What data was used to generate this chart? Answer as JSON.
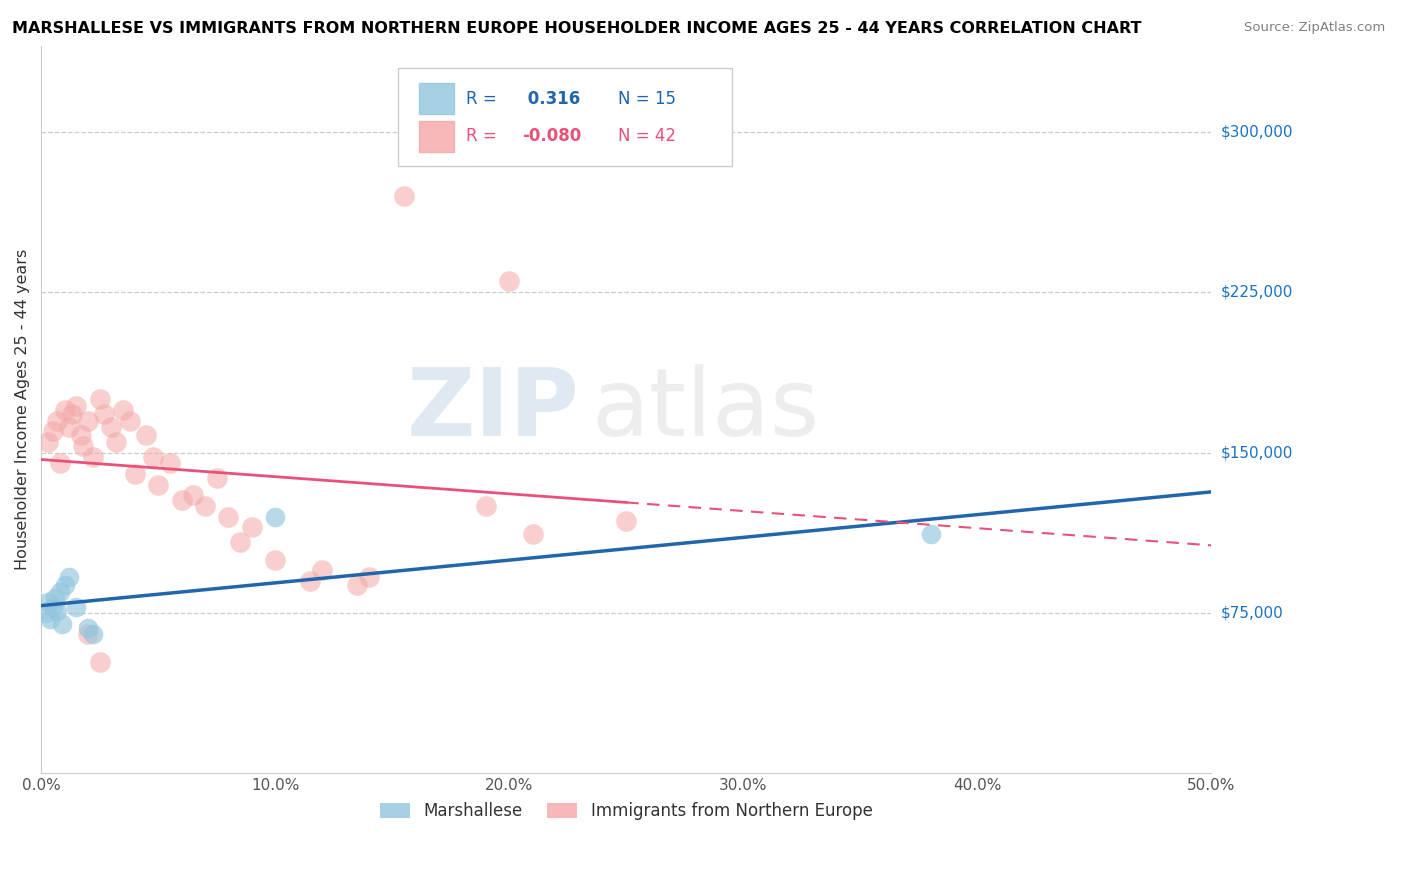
{
  "title": "MARSHALLESE VS IMMIGRANTS FROM NORTHERN EUROPE HOUSEHOLDER INCOME AGES 25 - 44 YEARS CORRELATION CHART",
  "source": "Source: ZipAtlas.com",
  "ylabel": "Householder Income Ages 25 - 44 years",
  "xlim": [
    0,
    0.5
  ],
  "ylim": [
    0,
    340000
  ],
  "xticks": [
    0.0,
    0.1,
    0.2,
    0.3,
    0.4,
    0.5
  ],
  "xticklabels": [
    "0.0%",
    "10.0%",
    "20.0%",
    "30.0%",
    "40.0%",
    "50.0%"
  ],
  "yticks_right": [
    75000,
    150000,
    225000,
    300000
  ],
  "ytick_labels_right": [
    "$75,000",
    "$150,000",
    "$225,000",
    "$300,000"
  ],
  "blue_R": 0.316,
  "blue_N": 15,
  "pink_R": -0.08,
  "pink_N": 42,
  "blue_color": "#92c5de",
  "pink_color": "#f4a6a6",
  "blue_line_color": "#2166ac",
  "pink_line_color": "#e8527a",
  "watermark_zip": "ZIP",
  "watermark_atlas": "atlas",
  "legend_label_blue": "Marshallese",
  "legend_label_pink": "Immigrants from Northern Europe",
  "blue_points_x": [
    0.002,
    0.003,
    0.004,
    0.005,
    0.006,
    0.007,
    0.008,
    0.009,
    0.01,
    0.012,
    0.015,
    0.02,
    0.022,
    0.1,
    0.38
  ],
  "blue_points_y": [
    75000,
    80000,
    72000,
    78000,
    82000,
    76000,
    85000,
    70000,
    88000,
    92000,
    78000,
    68000,
    65000,
    120000,
    112000
  ],
  "pink_points_x": [
    0.003,
    0.005,
    0.007,
    0.008,
    0.01,
    0.012,
    0.013,
    0.015,
    0.017,
    0.018,
    0.02,
    0.022,
    0.025,
    0.027,
    0.03,
    0.032,
    0.035,
    0.038,
    0.04,
    0.045,
    0.048,
    0.05,
    0.055,
    0.06,
    0.065,
    0.07,
    0.075,
    0.08,
    0.085,
    0.09,
    0.1,
    0.115,
    0.12,
    0.135,
    0.14,
    0.155,
    0.19,
    0.2,
    0.25,
    0.21,
    0.02,
    0.025
  ],
  "pink_points_y": [
    155000,
    160000,
    165000,
    145000,
    170000,
    162000,
    168000,
    172000,
    158000,
    153000,
    165000,
    148000,
    175000,
    168000,
    162000,
    155000,
    170000,
    165000,
    140000,
    158000,
    148000,
    135000,
    145000,
    128000,
    130000,
    125000,
    138000,
    120000,
    108000,
    115000,
    100000,
    90000,
    95000,
    88000,
    92000,
    270000,
    125000,
    230000,
    118000,
    112000,
    65000,
    52000
  ]
}
